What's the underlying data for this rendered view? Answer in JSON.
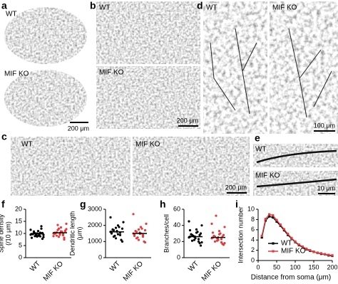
{
  "panels": {
    "a": {
      "letter": "a",
      "labels": [
        "WT",
        "MIF KO"
      ],
      "scale": "200 μm"
    },
    "b": {
      "letter": "b",
      "labels": [
        "WT",
        "MIF KO"
      ],
      "scale": "200 μm"
    },
    "c": {
      "letter": "c",
      "labels": [
        "WT",
        "MIF KO"
      ],
      "scale": "200 μm"
    },
    "d": {
      "letter": "d",
      "labels": [
        "WT",
        "MIF KO"
      ],
      "scale": "100 μm"
    },
    "e": {
      "letter": "e",
      "labels": [
        "WT",
        "MIF KO"
      ],
      "scale": "10 μm"
    }
  },
  "chart_data": [
    {
      "type": "strip",
      "letter": "f",
      "ylabel": [
        "Spine density",
        "(/10 μm)"
      ],
      "categories": [
        "WT",
        "MIF KO"
      ],
      "ylim": [
        0,
        20
      ],
      "yticks": [
        0,
        5,
        10,
        15,
        20
      ],
      "series": [
        {
          "name": "WT",
          "color": "#000000",
          "mean": 9.8,
          "error": 0.3,
          "values": [
            9.5,
            10.2,
            8.8,
            11.0,
            9.1,
            10.5,
            9.8,
            8.5,
            12.0,
            9.3,
            10.0,
            8.9,
            9.7,
            11.5,
            7.8,
            10.3,
            9.0,
            9.6,
            10.8,
            8.2,
            9.4,
            13.0,
            9.9,
            8.7,
            10.1
          ]
        },
        {
          "name": "MIF KO",
          "color": "#e8393a",
          "mean": 10.3,
          "error": 0.3,
          "values": [
            10.0,
            11.2,
            9.3,
            12.5,
            8.6,
            10.4,
            9.8,
            11.8,
            7.5,
            10.7,
            9.5,
            13.5,
            10.2,
            8.9,
            11.0,
            9.7,
            10.9,
            12.0,
            9.1,
            10.3,
            14.0,
            8.2,
            10.6,
            9.9,
            11.4
          ]
        }
      ]
    },
    {
      "type": "strip",
      "letter": "g",
      "ylabel": [
        "Dendritic length",
        "(μm)"
      ],
      "categories": [
        "WT",
        "MIF KO"
      ],
      "ylim": [
        0,
        3000
      ],
      "yticks": [
        0,
        1000,
        2000,
        3000
      ],
      "series": [
        {
          "name": "WT",
          "color": "#000000",
          "mean": 1600,
          "error": 80,
          "values": [
            1600,
            1800,
            1400,
            2000,
            1200,
            1700,
            1500,
            2200,
            1100,
            1900,
            1650,
            1350,
            1750,
            2500,
            1000,
            1550,
            1450,
            1850,
            1300,
            1600
          ]
        },
        {
          "name": "MIF KO",
          "color": "#e8393a",
          "mean": 1500,
          "error": 80,
          "values": [
            1500,
            1700,
            1300,
            1900,
            1100,
            1600,
            1450,
            2100,
            1000,
            1800,
            1550,
            1250,
            1650,
            2700,
            950,
            1400,
            1500,
            1750,
            1200,
            1350
          ]
        }
      ]
    },
    {
      "type": "strip",
      "letter": "h",
      "ylabel": [
        "Branches/cell"
      ],
      "categories": [
        "WT",
        "MIF KO"
      ],
      "ylim": [
        0,
        60
      ],
      "yticks": [
        0,
        20,
        40,
        60
      ],
      "series": [
        {
          "name": "WT",
          "color": "#000000",
          "mean": 26,
          "error": 1.5,
          "values": [
            25,
            30,
            20,
            35,
            22,
            28,
            26,
            40,
            18,
            32,
            24,
            27,
            29,
            45,
            15,
            23,
            31,
            26,
            21,
            34,
            19,
            28
          ]
        },
        {
          "name": "MIF KO",
          "color": "#e8393a",
          "mean": 25,
          "error": 1.5,
          "values": [
            24,
            28,
            19,
            33,
            21,
            26,
            25,
            38,
            17,
            30,
            22,
            52,
            27,
            42,
            16,
            23,
            29,
            24,
            20,
            31,
            18,
            26
          ]
        }
      ]
    },
    {
      "type": "line",
      "letter": "i",
      "ylabel": [
        "Intersection number"
      ],
      "xlabel": "Distance from soma (μm)",
      "x": [
        10,
        20,
        30,
        40,
        50,
        60,
        70,
        80,
        90,
        100,
        110,
        120,
        130,
        140,
        150,
        160,
        170,
        180,
        190,
        200
      ],
      "xlim": [
        0,
        200
      ],
      "xticks": [
        0,
        50,
        100,
        150,
        200
      ],
      "ylim": [
        0,
        10
      ],
      "yticks": [
        0,
        2,
        4,
        6,
        8,
        10
      ],
      "series": [
        {
          "name": "WT",
          "color": "#000000",
          "values": [
            4.5,
            7.8,
            8.6,
            8.4,
            7.6,
            6.8,
            5.9,
            5.0,
            4.3,
            3.6,
            3.0,
            2.6,
            2.2,
            1.9,
            1.7,
            1.5,
            1.3,
            1.2,
            1.0,
            0.9
          ]
        },
        {
          "name": "MIF KO",
          "color": "#e8393a",
          "values": [
            4.8,
            8.1,
            9.0,
            8.8,
            7.9,
            7.0,
            6.1,
            5.2,
            4.4,
            3.7,
            3.1,
            2.7,
            2.3,
            2.0,
            1.7,
            1.5,
            1.4,
            1.2,
            1.1,
            1.0
          ]
        }
      ]
    }
  ]
}
